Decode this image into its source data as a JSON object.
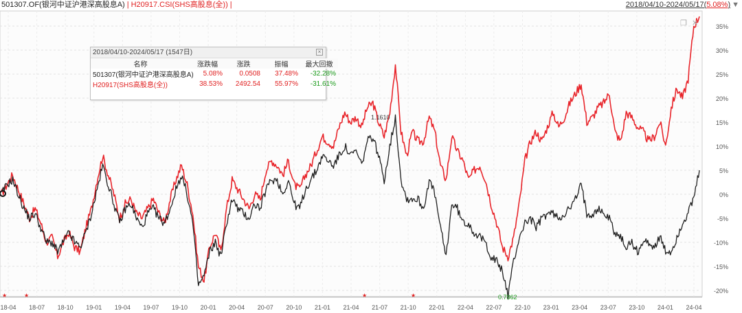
{
  "header": {
    "fund_label": "501307.OF(银河中证沪港深高股息A)",
    "separator": "|",
    "index_label": "H20917.CSI(SHS高股息(全))",
    "range_prefix": "2018/04/10-2024/05/17(",
    "range_value": "5.08%",
    "range_suffix": ")",
    "dropdown_glyph": "▼",
    "close_glyph": "|"
  },
  "panel": {
    "title": "2018/04/10-2024/05/17 (1547日)",
    "close_glyph": "×",
    "columns": [
      "名称",
      "涨跌幅",
      "涨跌",
      "振幅",
      "最大回撤"
    ],
    "rows": [
      {
        "name": "501307(银河中证沪港深高股息A)",
        "change_pct": "5.08%",
        "change": "0.0508",
        "amplitude": "37.48%",
        "max_dd": "-32.28%"
      },
      {
        "name": "H20917(SHS高股息(全))",
        "change_pct": "38.53%",
        "change": "2492.54",
        "amplitude": "55.97%",
        "max_dd": "-31.61%"
      }
    ]
  },
  "chart_data": {
    "type": "line",
    "y_unit": "%",
    "ylim": [
      -21,
      37
    ],
    "y_ticks": [
      "35%",
      "30%",
      "25%",
      "20%",
      "15%",
      "10%",
      "5%",
      "0%",
      "-5%",
      "-10%",
      "-15%",
      "-20%"
    ],
    "x_ticks": [
      "18-04",
      "18-07",
      "18-10",
      "19-01",
      "19-04",
      "19-07",
      "19-10",
      "20-01",
      "20-04",
      "20-07",
      "20-10",
      "21-01",
      "21-04",
      "21-07",
      "21-10",
      "22-01",
      "22-04",
      "22-07",
      "22-10",
      "23-01",
      "23-04",
      "23-07",
      "23-10",
      "24-01",
      "24-04"
    ],
    "grid": true,
    "annotations": {
      "high_label": "1.1610",
      "low_label": "0.7862"
    },
    "series": [
      {
        "name": "H20917.CSI(SHS高股息(全))",
        "color": "#e8242a",
        "values": [
          0,
          2,
          4,
          1,
          -2,
          -5,
          -3,
          -6,
          -10,
          -9,
          -13,
          -10,
          -8,
          -11,
          -12,
          -7,
          -3,
          3,
          8,
          4,
          0,
          -5,
          -2,
          -1,
          -4,
          -5,
          -3,
          -1,
          -4,
          -6,
          -1,
          3,
          6,
          2,
          -4,
          -15,
          -18,
          -11,
          -8,
          -12,
          -3,
          3,
          1,
          -1,
          -3,
          0,
          -1,
          5,
          7,
          6,
          4,
          7,
          2,
          1,
          4,
          6,
          9,
          12,
          11,
          10,
          14,
          17,
          15,
          16,
          14,
          18,
          19,
          15,
          12,
          17,
          27,
          13,
          8,
          13,
          11,
          11,
          16,
          13,
          6,
          3,
          12,
          9,
          7,
          3,
          5,
          6,
          3,
          -2,
          -6,
          -11,
          -13,
          -9,
          -2,
          7,
          11,
          13,
          11,
          14,
          17,
          14,
          16,
          19,
          21,
          23,
          15,
          16,
          18,
          19,
          21,
          13,
          11,
          17,
          16,
          14,
          13,
          11,
          12,
          15,
          10,
          18,
          22,
          20,
          24,
          35,
          37
        ]
      },
      {
        "name": "501307.OF(银河中证沪港深高股息A)",
        "color": "#1e1e1e",
        "values": [
          0,
          2,
          3,
          0,
          -3,
          -5,
          -4,
          -7,
          -10,
          -10,
          -12,
          -10,
          -8,
          -10,
          -11,
          -8,
          -4,
          1,
          6,
          2,
          -2,
          -6,
          -3,
          -2,
          -5,
          -7,
          -4,
          -3,
          -5,
          -6,
          -3,
          1,
          4,
          0,
          -6,
          -19,
          -17,
          -12,
          -10,
          -13,
          -6,
          -1,
          -3,
          -4,
          -5,
          -2,
          -3,
          1,
          3,
          3,
          0,
          3,
          -2,
          -3,
          1,
          3,
          5,
          8,
          7,
          6,
          8,
          10,
          8,
          9,
          6,
          11,
          12,
          8,
          3,
          10,
          16,
          3,
          -1,
          -1,
          -1,
          -3,
          3,
          0,
          -7,
          -13,
          -2,
          -3,
          -6,
          -6,
          -8,
          -9,
          -10,
          -13,
          -14,
          -16,
          -21,
          -14,
          -9,
          -6,
          -5,
          -7,
          -5,
          -4,
          -4,
          -5,
          -4,
          -3,
          -1,
          2,
          -4,
          -4,
          -3,
          -4,
          -5,
          -8,
          -9,
          -11,
          -10,
          -12,
          -10,
          -10,
          -11,
          -9,
          -12,
          -12,
          -9,
          -6,
          -4,
          -1,
          5
        ]
      }
    ]
  }
}
